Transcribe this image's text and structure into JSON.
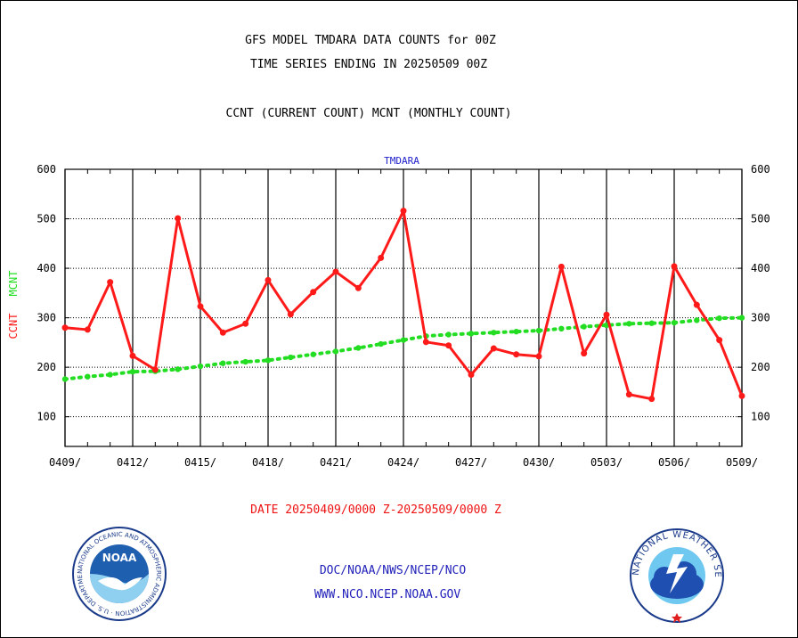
{
  "header": {
    "title_line1": "GFS MODEL TMDARA DATA COUNTS for 00Z",
    "title_line2": "TIME SERIES ENDING IN 20250509 00Z",
    "subtitle": "CCNT (CURRENT COUNT) MCNT (MONTHLY COUNT)"
  },
  "footer": {
    "date_range": "DATE 20250409/0000 Z-20250509/0000 Z",
    "org_path": "DOC/NOAA/NWS/NCEP/NCO",
    "website": "WWW.NCO.NCEP.NOAA.GOV",
    "noaa_logo_text": "NOAA",
    "noaa_ring_text": "NATIONAL OCEANIC AND ATMOSPHERIC ADMINISTRATION · U.S. DEPARTMENT OF COMMERCE",
    "nws_ring_text": "NATIONAL WEATHER SERVICE"
  },
  "colors": {
    "ccnt": "#ff1a1a",
    "mcnt": "#22dd22",
    "footer_red": "#ee1111",
    "footer_blue": "#2222bb",
    "panel_title": "#2222cc"
  },
  "chart_data": {
    "type": "line",
    "panel_title": "TMDARA",
    "ylabel_ccnt": "CCNT",
    "ylabel_mcnt": "MCNT",
    "ylim": [
      40,
      600
    ],
    "yticks": [
      100,
      200,
      300,
      400,
      500,
      600
    ],
    "xticks": [
      "0409/",
      "0412/",
      "0415/",
      "0418/",
      "0421/",
      "0424/",
      "0427/",
      "0430/",
      "0503/",
      "0506/",
      "0509/"
    ],
    "grid": true,
    "x": [
      "0409",
      "0410",
      "0411",
      "0412",
      "0413",
      "0414",
      "0415",
      "0416",
      "0417",
      "0418",
      "0419",
      "0420",
      "0421",
      "0422",
      "0423",
      "0424",
      "0425",
      "0426",
      "0427",
      "0428",
      "0429",
      "0430",
      "0501",
      "0502",
      "0503",
      "0504",
      "0505",
      "0506",
      "0507",
      "0508",
      "0509"
    ],
    "series": [
      {
        "name": "CCNT",
        "values": [
          280,
          276,
          372,
          223,
          195,
          501,
          323,
          270,
          288,
          376,
          307,
          352,
          393,
          360,
          421,
          516,
          251,
          244,
          185,
          238,
          226,
          222,
          403,
          228,
          306,
          145,
          136,
          404,
          326,
          255,
          142
        ]
      },
      {
        "name": "MCNT",
        "values": [
          176,
          181,
          185,
          191,
          192,
          196,
          202,
          208,
          211,
          214,
          220,
          226,
          232,
          239,
          247,
          255,
          263,
          266,
          268,
          270,
          272,
          274,
          278,
          282,
          285,
          288,
          289,
          290,
          295,
          299,
          300
        ]
      }
    ]
  }
}
